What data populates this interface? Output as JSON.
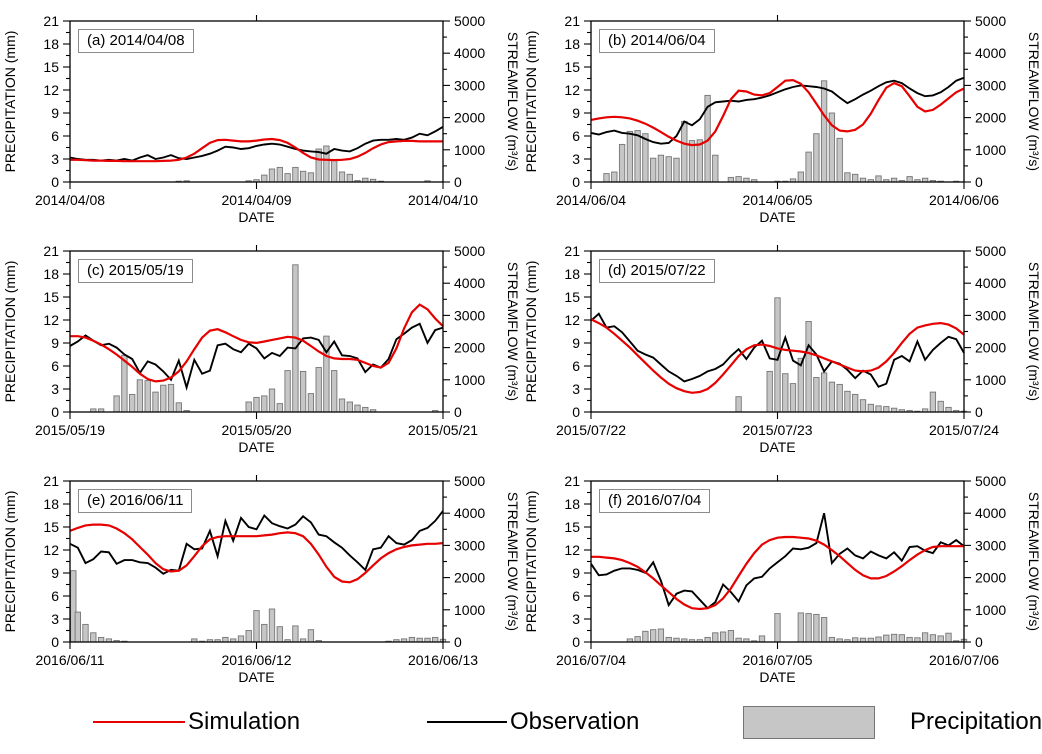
{
  "chart_data": {
    "type": "multi-panel line+bar hydrograph",
    "x_unit": "hour (49 hourly points spanning 2 days)",
    "legend_position": "bottom",
    "colors": {
      "simulation": "#e60000",
      "observation": "#000000",
      "precipitation_fill": "#c6c6c6",
      "precipitation_stroke": "#757575"
    },
    "axes": {
      "left_label": "PRECIPITATION (mm)",
      "right_label": "STREAMFLOW (m³/s)",
      "x_label": "DATE",
      "left_ticks": [
        0,
        3,
        6,
        9,
        12,
        15,
        18,
        21
      ],
      "right_ticks": [
        0,
        1000,
        2000,
        3000,
        4000,
        5000
      ],
      "left_max": 21,
      "right_max": 5000,
      "grid": false
    },
    "legend": [
      {
        "type": "line",
        "label": "Simulation"
      },
      {
        "type": "line",
        "label": "Observation"
      },
      {
        "type": "box",
        "label": "Precipitation"
      }
    ],
    "panels": [
      {
        "id": "a",
        "label": "(a) 2014/04/08",
        "x_tick_labels": [
          "2014/04/08",
          "2014/04/09",
          "2014/04/10"
        ],
        "precip_mm": [
          0,
          0,
          0,
          0,
          0,
          0,
          0,
          0,
          0,
          0,
          0,
          0,
          0,
          0,
          0.1,
          0.15,
          0,
          0,
          0,
          0,
          0,
          0,
          0,
          0.15,
          0.3,
          0.9,
          1.7,
          1.9,
          1.1,
          1.9,
          1.4,
          1.2,
          4.3,
          4.7,
          2.9,
          1.3,
          1.0,
          0.2,
          0.5,
          0.35,
          0.1,
          0,
          0,
          0,
          0,
          0,
          0.15,
          0,
          0
        ],
        "observation_m3s": [
          760,
          715,
          690,
          690,
          665,
          690,
          665,
          715,
          665,
          760,
          835,
          715,
          760,
          835,
          740,
          715,
          760,
          810,
          880,
          975,
          1095,
          1070,
          1025,
          1050,
          1120,
          1165,
          1190,
          1165,
          1095,
          1025,
          975,
          950,
          930,
          880,
          1025,
          975,
          950,
          1050,
          1190,
          1285,
          1310,
          1310,
          1335,
          1310,
          1380,
          1500,
          1450,
          1570,
          1715
        ],
        "simulation_m3s": [
          690,
          690,
          680,
          665,
          665,
          655,
          655,
          645,
          645,
          645,
          645,
          645,
          655,
          665,
          690,
          760,
          880,
          1050,
          1215,
          1300,
          1310,
          1285,
          1260,
          1260,
          1285,
          1320,
          1335,
          1300,
          1215,
          1070,
          905,
          760,
          700,
          690,
          680,
          690,
          715,
          785,
          905,
          1050,
          1165,
          1240,
          1260,
          1275,
          1275,
          1260,
          1260,
          1260,
          1260
        ]
      },
      {
        "id": "b",
        "label": "(b) 2014/06/04",
        "x_tick_labels": [
          "2014/06/04",
          "2014/06/05",
          "2014/06/06"
        ],
        "precip_mm": [
          0,
          0,
          1.1,
          1.3,
          4.9,
          6.6,
          6.7,
          6.3,
          3.1,
          3.5,
          3.3,
          3.1,
          7.9,
          5.4,
          5.5,
          11.3,
          3.5,
          0,
          0.6,
          0.7,
          0.5,
          0.3,
          0,
          0,
          0.1,
          0.1,
          0.4,
          1.3,
          3.9,
          6.3,
          13.2,
          9.0,
          5.7,
          1.2,
          1.0,
          0.5,
          0.3,
          0.8,
          0.3,
          0.5,
          0.2,
          0.7,
          0.3,
          0.5,
          0.2,
          0.1,
          0,
          0.1,
          0
        ],
        "observation_m3s": [
          1525,
          1475,
          1550,
          1595,
          1525,
          1500,
          1450,
          1335,
          1240,
          1190,
          1215,
          1430,
          1880,
          1760,
          1950,
          2335,
          2475,
          2500,
          2525,
          2500,
          2550,
          2570,
          2620,
          2690,
          2785,
          2880,
          2950,
          3000,
          2975,
          2950,
          2905,
          2810,
          2620,
          2450,
          2570,
          2715,
          2835,
          2975,
          3095,
          3145,
          3070,
          2905,
          2760,
          2665,
          2690,
          2785,
          2950,
          3145,
          3240
        ],
        "simulation_m3s": [
          1930,
          1975,
          2010,
          2025,
          2010,
          1975,
          1905,
          1810,
          1690,
          1550,
          1405,
          1285,
          1190,
          1145,
          1165,
          1285,
          1570,
          2050,
          2570,
          2835,
          2810,
          2715,
          2690,
          2760,
          2950,
          3145,
          3165,
          3050,
          2785,
          2430,
          2070,
          1760,
          1595,
          1570,
          1620,
          1785,
          2120,
          2545,
          2930,
          3070,
          2975,
          2665,
          2335,
          2190,
          2240,
          2405,
          2595,
          2785,
          2905
        ]
      },
      {
        "id": "c",
        "label": "(c) 2015/05/19",
        "x_tick_labels": [
          "2015/05/19",
          "2015/05/20",
          "2015/05/21"
        ],
        "precip_mm": [
          0,
          0,
          0,
          0.4,
          0.4,
          0,
          2.1,
          7.4,
          2.3,
          4.2,
          4.1,
          2.6,
          3.5,
          3.6,
          1.2,
          0.2,
          0,
          0,
          0,
          0,
          0,
          0,
          0,
          1.3,
          1.9,
          2.1,
          3.0,
          1.1,
          5.4,
          19.2,
          5.3,
          2.4,
          5.8,
          9.9,
          5.4,
          1.7,
          1.3,
          0.9,
          0.6,
          0.3,
          0,
          0,
          0,
          0,
          0,
          0,
          0,
          0.2,
          0
        ],
        "observation_m3s": [
          2050,
          2190,
          2380,
          2215,
          2070,
          2120,
          2000,
          1785,
          1645,
          1215,
          1570,
          1475,
          1260,
          1000,
          1595,
          760,
          1620,
          1190,
          1285,
          2070,
          2120,
          1950,
          1855,
          2120,
          1975,
          1665,
          1835,
          1740,
          2000,
          1975,
          2285,
          2310,
          2240,
          1855,
          2190,
          1760,
          1740,
          1665,
          1240,
          1475,
          1380,
          1645,
          2260,
          2430,
          2620,
          2740,
          2145,
          2545,
          2620
        ],
        "simulation_m3s": [
          2355,
          2355,
          2310,
          2215,
          2095,
          1950,
          1785,
          1595,
          1405,
          1190,
          1025,
          950,
          975,
          1070,
          1260,
          1570,
          1950,
          2310,
          2525,
          2570,
          2475,
          2355,
          2240,
          2165,
          2145,
          2190,
          2240,
          2285,
          2335,
          2310,
          2215,
          2050,
          1880,
          1740,
          1665,
          1645,
          1645,
          1620,
          1525,
          1430,
          1380,
          1525,
          1975,
          2595,
          3095,
          3335,
          3190,
          2905,
          2665
        ]
      },
      {
        "id": "d",
        "label": "(d) 2015/07/22",
        "x_tick_labels": [
          "2015/07/22",
          "2015/07/23",
          "2015/07/24"
        ],
        "precip_mm": [
          0,
          0,
          0,
          0,
          0,
          0,
          0,
          0,
          0,
          0,
          0,
          0,
          0,
          0,
          0,
          0,
          0,
          0,
          0,
          2.0,
          0,
          0,
          0,
          5.3,
          14.9,
          5.0,
          3.7,
          7.0,
          11.8,
          4.5,
          5.1,
          3.9,
          3.6,
          2.7,
          2.3,
          1.6,
          1.0,
          0.8,
          0.7,
          0.5,
          0.3,
          0.2,
          0.1,
          0.4,
          2.6,
          1.4,
          0.6,
          0.2,
          0.1
        ],
        "observation_m3s": [
          2835,
          3050,
          2620,
          2665,
          2475,
          2190,
          1905,
          1785,
          1690,
          1475,
          1260,
          1120,
          950,
          1025,
          1120,
          1260,
          1335,
          1475,
          1740,
          1950,
          1645,
          2000,
          2215,
          1665,
          1620,
          2310,
          1595,
          1450,
          2070,
          1785,
          1260,
          1570,
          1500,
          1310,
          1050,
          1285,
          1165,
          785,
          880,
          1620,
          1740,
          1570,
          2190,
          1620,
          1930,
          2145,
          2335,
          2260,
          1835
        ],
        "simulation_m3s": [
          2880,
          2760,
          2620,
          2430,
          2215,
          2000,
          1760,
          1525,
          1285,
          1070,
          880,
          740,
          645,
          595,
          620,
          715,
          905,
          1165,
          1450,
          1740,
          1950,
          2070,
          2095,
          2050,
          1975,
          1930,
          1905,
          1880,
          1835,
          1760,
          1665,
          1570,
          1475,
          1380,
          1285,
          1260,
          1285,
          1380,
          1570,
          1835,
          2145,
          2430,
          2620,
          2690,
          2740,
          2760,
          2715,
          2595,
          2405
        ]
      },
      {
        "id": "e",
        "label": "(e) 2016/06/11",
        "x_tick_labels": [
          "2016/06/11",
          "2016/06/12",
          "2016/06/13"
        ],
        "precip_mm": [
          9.3,
          3.9,
          2.3,
          1.2,
          0.6,
          0.4,
          0.2,
          0.1,
          0,
          0,
          0,
          0,
          0,
          0,
          0,
          0,
          0.4,
          0.1,
          0.3,
          0.3,
          0.6,
          0.4,
          0.8,
          1.5,
          4.1,
          2.3,
          4.3,
          2.0,
          0.3,
          2.1,
          0.4,
          1.6,
          0.2,
          0,
          0,
          0,
          0,
          0,
          0,
          0,
          0,
          0.1,
          0.3,
          0.4,
          0.6,
          0.5,
          0.5,
          0.6,
          0.35
        ],
        "observation_m3s": [
          3050,
          2930,
          2450,
          2570,
          2810,
          2785,
          2430,
          2545,
          2545,
          2475,
          2450,
          2310,
          2120,
          2240,
          2215,
          3050,
          2880,
          2905,
          3450,
          2665,
          3760,
          3145,
          3855,
          3570,
          3500,
          3930,
          3690,
          3595,
          3525,
          3645,
          3905,
          3715,
          3335,
          3285,
          3095,
          2930,
          2690,
          2475,
          2240,
          2880,
          2930,
          3285,
          3070,
          3025,
          3165,
          3450,
          3545,
          3760,
          4070
        ],
        "simulation_m3s": [
          3450,
          3545,
          3620,
          3645,
          3645,
          3620,
          3525,
          3380,
          3190,
          2950,
          2715,
          2450,
          2260,
          2190,
          2215,
          2380,
          2665,
          2975,
          3190,
          3260,
          3285,
          3285,
          3285,
          3285,
          3285,
          3310,
          3335,
          3380,
          3405,
          3380,
          3285,
          3050,
          2715,
          2335,
          2025,
          1880,
          1855,
          1950,
          2145,
          2380,
          2595,
          2760,
          2880,
          2950,
          3000,
          3025,
          3050,
          3050,
          3070
        ]
      },
      {
        "id": "f",
        "label": "(f) 2016/07/04",
        "x_tick_labels": [
          "2016/07/04",
          "2016/07/05",
          "2016/07/06"
        ],
        "precip_mm": [
          0,
          0,
          0,
          0,
          0,
          0.4,
          0.7,
          1.4,
          1.6,
          1.7,
          0.6,
          0.5,
          0.4,
          0.3,
          0.3,
          0.6,
          1.2,
          1.3,
          1.5,
          0.5,
          0.4,
          0.15,
          0.8,
          0,
          3.7,
          0,
          0,
          3.8,
          3.7,
          3.6,
          3.2,
          0.6,
          0.4,
          0.3,
          0.55,
          0.5,
          0.5,
          0.65,
          0.9,
          1.0,
          0.95,
          0.6,
          0.55,
          1.2,
          0.95,
          0.8,
          1.15,
          0.15,
          0.35
        ],
        "observation_m3s": [
          2430,
          2070,
          2095,
          2215,
          2285,
          2285,
          2240,
          2145,
          2475,
          1905,
          1145,
          1500,
          1595,
          1570,
          1310,
          1050,
          1240,
          1785,
          1550,
          1260,
          1760,
          1975,
          2025,
          2285,
          2475,
          2665,
          2905,
          2880,
          2930,
          3070,
          4000,
          2450,
          2740,
          2905,
          2690,
          2595,
          2810,
          2690,
          2595,
          2785,
          2525,
          2950,
          2975,
          2835,
          2760,
          3095,
          3000,
          3165,
          2975
        ],
        "simulation_m3s": [
          2645,
          2645,
          2620,
          2595,
          2545,
          2450,
          2335,
          2165,
          1975,
          1760,
          1550,
          1335,
          1165,
          1050,
          1025,
          1050,
          1145,
          1355,
          1665,
          2050,
          2430,
          2760,
          3025,
          3165,
          3240,
          3260,
          3260,
          3240,
          3215,
          3145,
          3025,
          2855,
          2665,
          2450,
          2240,
          2070,
          1975,
          1975,
          2050,
          2190,
          2355,
          2545,
          2715,
          2855,
          2950,
          2975,
          2975,
          2975,
          2975
        ]
      }
    ]
  }
}
